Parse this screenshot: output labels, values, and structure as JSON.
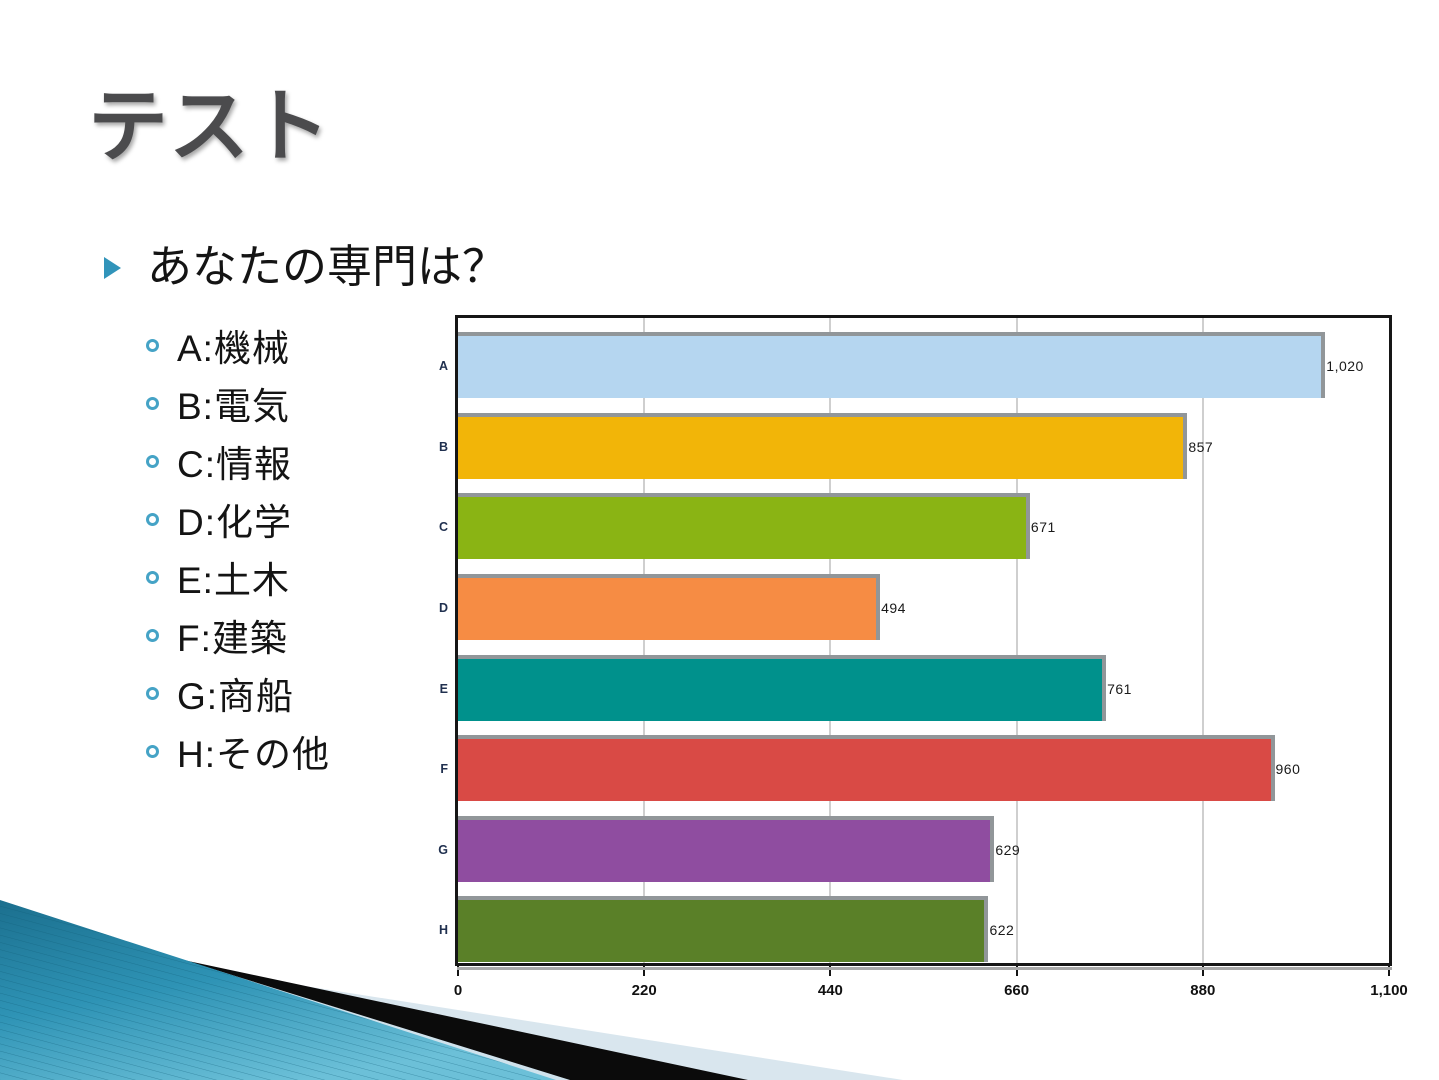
{
  "slide": {
    "title": "テスト",
    "bullet": {
      "text": "あなたの専門は？",
      "items": [
        "A:機械",
        "B:電気",
        "C:情報",
        "D:化学",
        "E:土木",
        "F:建築",
        "G:商船",
        "H:その他"
      ]
    }
  },
  "chart_data": {
    "type": "bar",
    "orientation": "horizontal",
    "categories": [
      "A",
      "B",
      "C",
      "D",
      "E",
      "F",
      "G",
      "H"
    ],
    "values": [
      1020,
      857,
      671,
      494,
      761,
      960,
      629,
      622
    ],
    "value_labels": [
      "1,020",
      "857",
      "671",
      "494",
      "761",
      "960",
      "629",
      "622"
    ],
    "bar_colors": [
      "#b5d6f0",
      "#f2b508",
      "#8ab414",
      "#f68c44",
      "#00918c",
      "#d94a45",
      "#8f4da0",
      "#5a8028"
    ],
    "bar_edge_color": "#919699",
    "xlim": [
      0,
      1100
    ],
    "x_ticks": [
      0,
      220,
      440,
      660,
      880,
      1100
    ],
    "x_tick_labels": [
      "0",
      "220",
      "440",
      "660",
      "880",
      "1,100"
    ],
    "grid": true,
    "legend": "none"
  },
  "theme": {
    "accent_teal": "#3194ba",
    "circle_bullet_color": "#45a3c6",
    "title_color": "#4b4b4d",
    "body_text_color": "#141414",
    "chart_border_color": "#161616",
    "gridline_color": "#cfcfcf",
    "category_label_color": "#20304f",
    "decoration_colors": [
      "#d9e6ee",
      "#0b0b0b",
      "#cfe2ec",
      "#2e93b5"
    ]
  },
  "icons": {
    "bullet_arrow": "filled right-pointing triangle",
    "circle_bullet": "open circle"
  }
}
